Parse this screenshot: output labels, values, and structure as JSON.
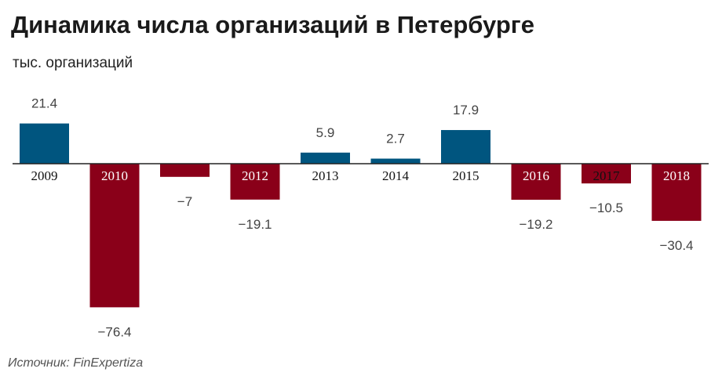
{
  "chart_data": {
    "type": "bar",
    "title": "Динамика числа организаций в Петербурге",
    "unit_label": "тыс. организаций",
    "source": "Источник: FinExpertiza",
    "categories": [
      "2009",
      "2010",
      "",
      "2012",
      "2013",
      "2014",
      "2015",
      "2016",
      "2017",
      "2018"
    ],
    "values": [
      21.4,
      -76.4,
      -7,
      -19.1,
      5.9,
      2.7,
      17.9,
      -19.2,
      -10.5,
      -30.4
    ],
    "value_labels": [
      "21.4",
      "−76.4",
      "−7",
      "−19.1",
      "5.9",
      "2.7",
      "17.9",
      "−19.2",
      "−10.5",
      "−30.4"
    ],
    "colors": {
      "positive": "#00557f",
      "negative": "#8a0019"
    },
    "grid": false,
    "legend": "none"
  }
}
